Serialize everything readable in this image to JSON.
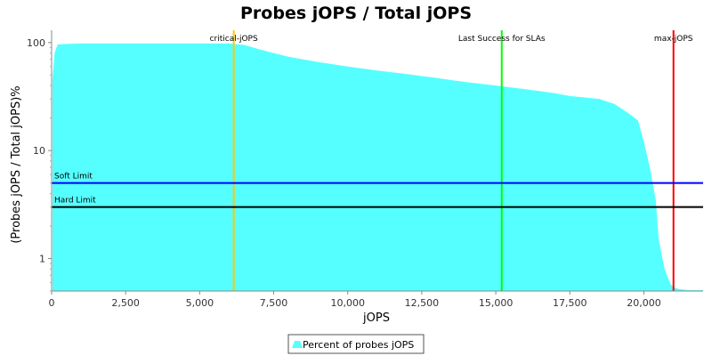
{
  "chart_data": {
    "type": "area",
    "title": "Probes jOPS / Total jOPS",
    "xlabel": "jOPS",
    "ylabel": "(Probes jOPS / Total jOPS)%",
    "xlim": [
      0,
      22000
    ],
    "ylim": [
      0.5,
      130
    ],
    "y_scale": "log",
    "x_ticks": [
      0,
      2500,
      5000,
      7500,
      10000,
      12500,
      15000,
      17500,
      20000
    ],
    "x_tick_labels": [
      "0",
      "2,500",
      "5,000",
      "7,500",
      "10,000",
      "12,500",
      "15,000",
      "17,500",
      "20,000"
    ],
    "y_ticks": [
      1,
      10,
      100
    ],
    "y_tick_labels": [
      "1",
      "10",
      "100"
    ],
    "grid": false,
    "legend_position": "bottom-center",
    "series": [
      {
        "name": "Percent of probes jOPS",
        "color": "#55ffff",
        "x": [
          30,
          100,
          200,
          500,
          1000,
          2000,
          3000,
          4000,
          5000,
          6000,
          6500,
          7000,
          7500,
          8000,
          9000,
          10000,
          11000,
          12000,
          13000,
          14000,
          15000,
          16000,
          17000,
          17500,
          18000,
          18500,
          19000,
          19500,
          19800,
          20000,
          20200,
          20400,
          20500,
          20700,
          20900,
          21000,
          21200,
          21500,
          22000
        ],
        "y": [
          45,
          80,
          96,
          97,
          98,
          98,
          98,
          98,
          98,
          98,
          95,
          87,
          80,
          74,
          66,
          60,
          55,
          51,
          47,
          43,
          40,
          37,
          34,
          32,
          31,
          30,
          27,
          22,
          19,
          12,
          7,
          3.5,
          1.5,
          0.8,
          0.58,
          0.54,
          0.52,
          0.51,
          0.51
        ]
      }
    ],
    "markers": {
      "vertical": [
        {
          "label": "critical-jOPS",
          "x": 6150,
          "color": "#ffc800"
        },
        {
          "label": "Last Success for SLAs",
          "x": 15200,
          "color": "#00ff00"
        },
        {
          "label": "max-jOPS",
          "x": 21000,
          "color": "#ff0000"
        }
      ],
      "horizontal": [
        {
          "label": "Soft Limit",
          "y": 5,
          "color": "#0000ff"
        },
        {
          "label": "Hard Limit",
          "y": 3,
          "color": "#000000"
        }
      ]
    }
  }
}
